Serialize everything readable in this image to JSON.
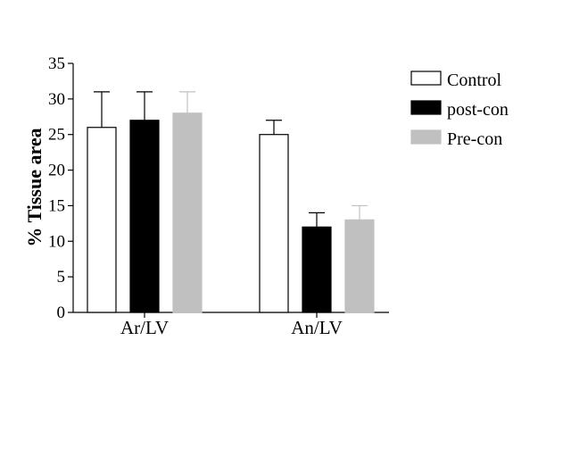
{
  "chart_data": {
    "type": "bar",
    "categories": [
      "Ar/LV",
      "An/LV"
    ],
    "ylabel": "% Tissue area",
    "xlabel": "",
    "ylim": [
      0,
      35
    ],
    "yticks": [
      0,
      5,
      10,
      15,
      20,
      25,
      30,
      35
    ],
    "grid": false,
    "legend_position": "right",
    "series": [
      {
        "name": "Control",
        "values": [
          26,
          25
        ],
        "errors": [
          5,
          2
        ],
        "color": "#ffffff",
        "stroke": "#000000",
        "error_color": "#000000"
      },
      {
        "name": "post-con",
        "values": [
          27,
          12
        ],
        "errors": [
          4,
          2
        ],
        "color": "#000000",
        "stroke": "#000000",
        "error_color": "#000000"
      },
      {
        "name": "Pre-con",
        "values": [
          28,
          13
        ],
        "errors": [
          3,
          2
        ],
        "color": "#c0c0c0",
        "stroke": "#c0c0c0",
        "error_color": "#c0c0c0"
      }
    ]
  }
}
